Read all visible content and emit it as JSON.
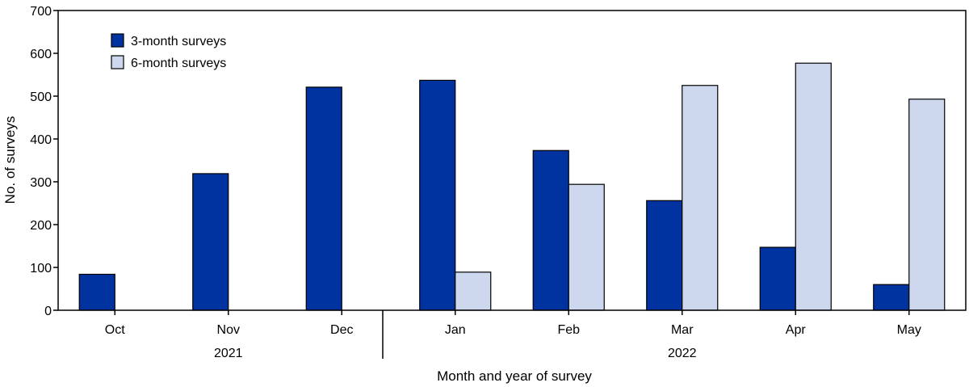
{
  "chart_data": {
    "type": "bar",
    "categories": [
      "Oct",
      "Nov",
      "Dec",
      "Jan",
      "Feb",
      "Mar",
      "Apr",
      "May"
    ],
    "year_groups": [
      {
        "label": "2021",
        "categories": [
          "Oct",
          "Nov",
          "Dec"
        ]
      },
      {
        "label": "2022",
        "categories": [
          "Jan",
          "Feb",
          "Mar",
          "Apr",
          "May"
        ]
      }
    ],
    "series": [
      {
        "name": "3-month surveys",
        "color": "#0033a0",
        "values": [
          84,
          319,
          521,
          537,
          373,
          256,
          147,
          60
        ]
      },
      {
        "name": "6-month surveys",
        "color": "#cdd8ee",
        "values": [
          0,
          0,
          0,
          89,
          294,
          525,
          577,
          493
        ]
      }
    ],
    "xlabel": "Month and year of survey",
    "ylabel": "No. of surveys",
    "ylim": [
      0,
      700
    ],
    "yticks": [
      0,
      100,
      200,
      300,
      400,
      500,
      600,
      700
    ],
    "grid": false,
    "legend_position": "top-left"
  }
}
